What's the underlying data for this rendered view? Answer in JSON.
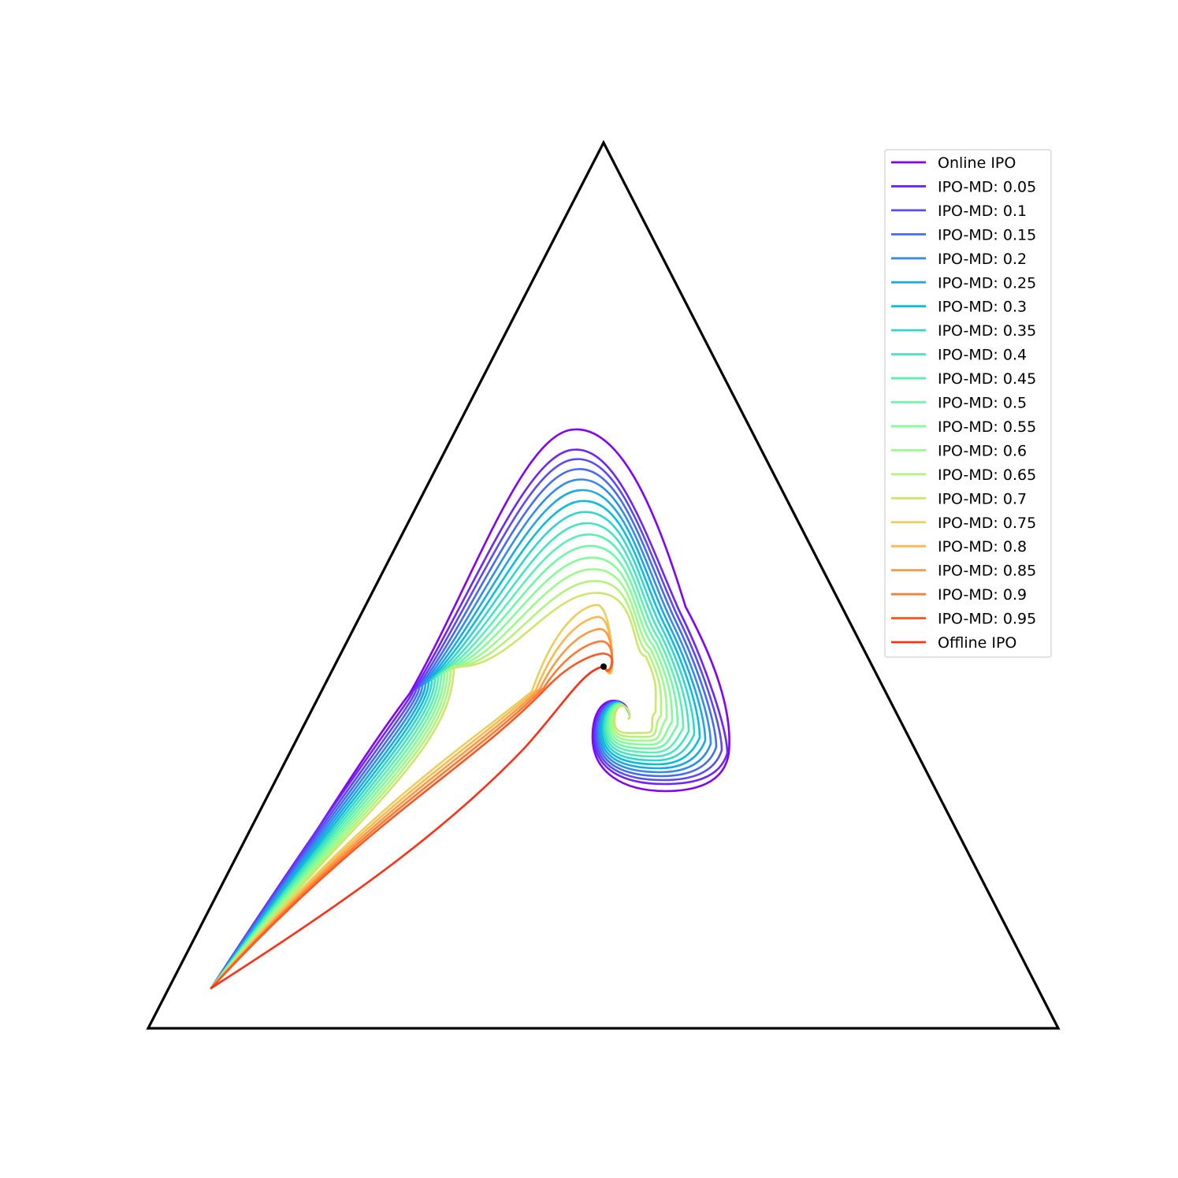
{
  "chart_data": {
    "type": "line",
    "title": "",
    "xlabel": "",
    "ylabel": "",
    "axes_visible": false,
    "frame": "simplex-triangle",
    "grid": false,
    "legend_position": "top-right",
    "start_point": "near bottom-left vertex",
    "end_point": "spiral center inside triangle",
    "series": [
      {
        "name": "Online IPO",
        "color": "#8000ff",
        "mix": 0.0
      },
      {
        "name": "IPO-MD: 0.05",
        "color": "#6d26fe",
        "mix": 0.05
      },
      {
        "name": "IPO-MD: 0.1",
        "color": "#5a4bfa",
        "mix": 0.1
      },
      {
        "name": "IPO-MD: 0.15",
        "color": "#466cf5",
        "mix": 0.15
      },
      {
        "name": "IPO-MD: 0.2",
        "color": "#318cec",
        "mix": 0.2
      },
      {
        "name": "IPO-MD: 0.25",
        "color": "#1ca8e3",
        "mix": 0.25
      },
      {
        "name": "IPO-MD: 0.3",
        "color": "#09bfd8",
        "mix": 0.3
      },
      {
        "name": "IPO-MD: 0.35",
        "color": "#33d5cb",
        "mix": 0.35
      },
      {
        "name": "IPO-MD: 0.4",
        "color": "#45e4be",
        "mix": 0.4
      },
      {
        "name": "IPO-MD: 0.45",
        "color": "#5af0b2",
        "mix": 0.45
      },
      {
        "name": "IPO-MD: 0.5",
        "color": "#6ef8a5",
        "mix": 0.5
      },
      {
        "name": "IPO-MD: 0.55",
        "color": "#84fd98",
        "mix": 0.55
      },
      {
        "name": "IPO-MD: 0.6",
        "color": "#9bfb8b",
        "mix": 0.6
      },
      {
        "name": "IPO-MD: 0.65",
        "color": "#b2f37d",
        "mix": 0.65
      },
      {
        "name": "IPO-MD: 0.7",
        "color": "#cce66e",
        "mix": 0.7
      },
      {
        "name": "IPO-MD: 0.75",
        "color": "#e6d05f",
        "mix": 0.75
      },
      {
        "name": "IPO-MD: 0.8",
        "color": "#ffb750",
        "mix": 0.8
      },
      {
        "name": "IPO-MD: 0.85",
        "color": "#ff9a42",
        "mix": 0.85
      },
      {
        "name": "IPO-MD: 0.9",
        "color": "#ff7a33",
        "mix": 0.9
      },
      {
        "name": "IPO-MD: 0.95",
        "color": "#ff5724",
        "mix": 0.95
      },
      {
        "name": "Offline IPO",
        "color": "#ff3015",
        "mix": 1.0
      }
    ]
  }
}
